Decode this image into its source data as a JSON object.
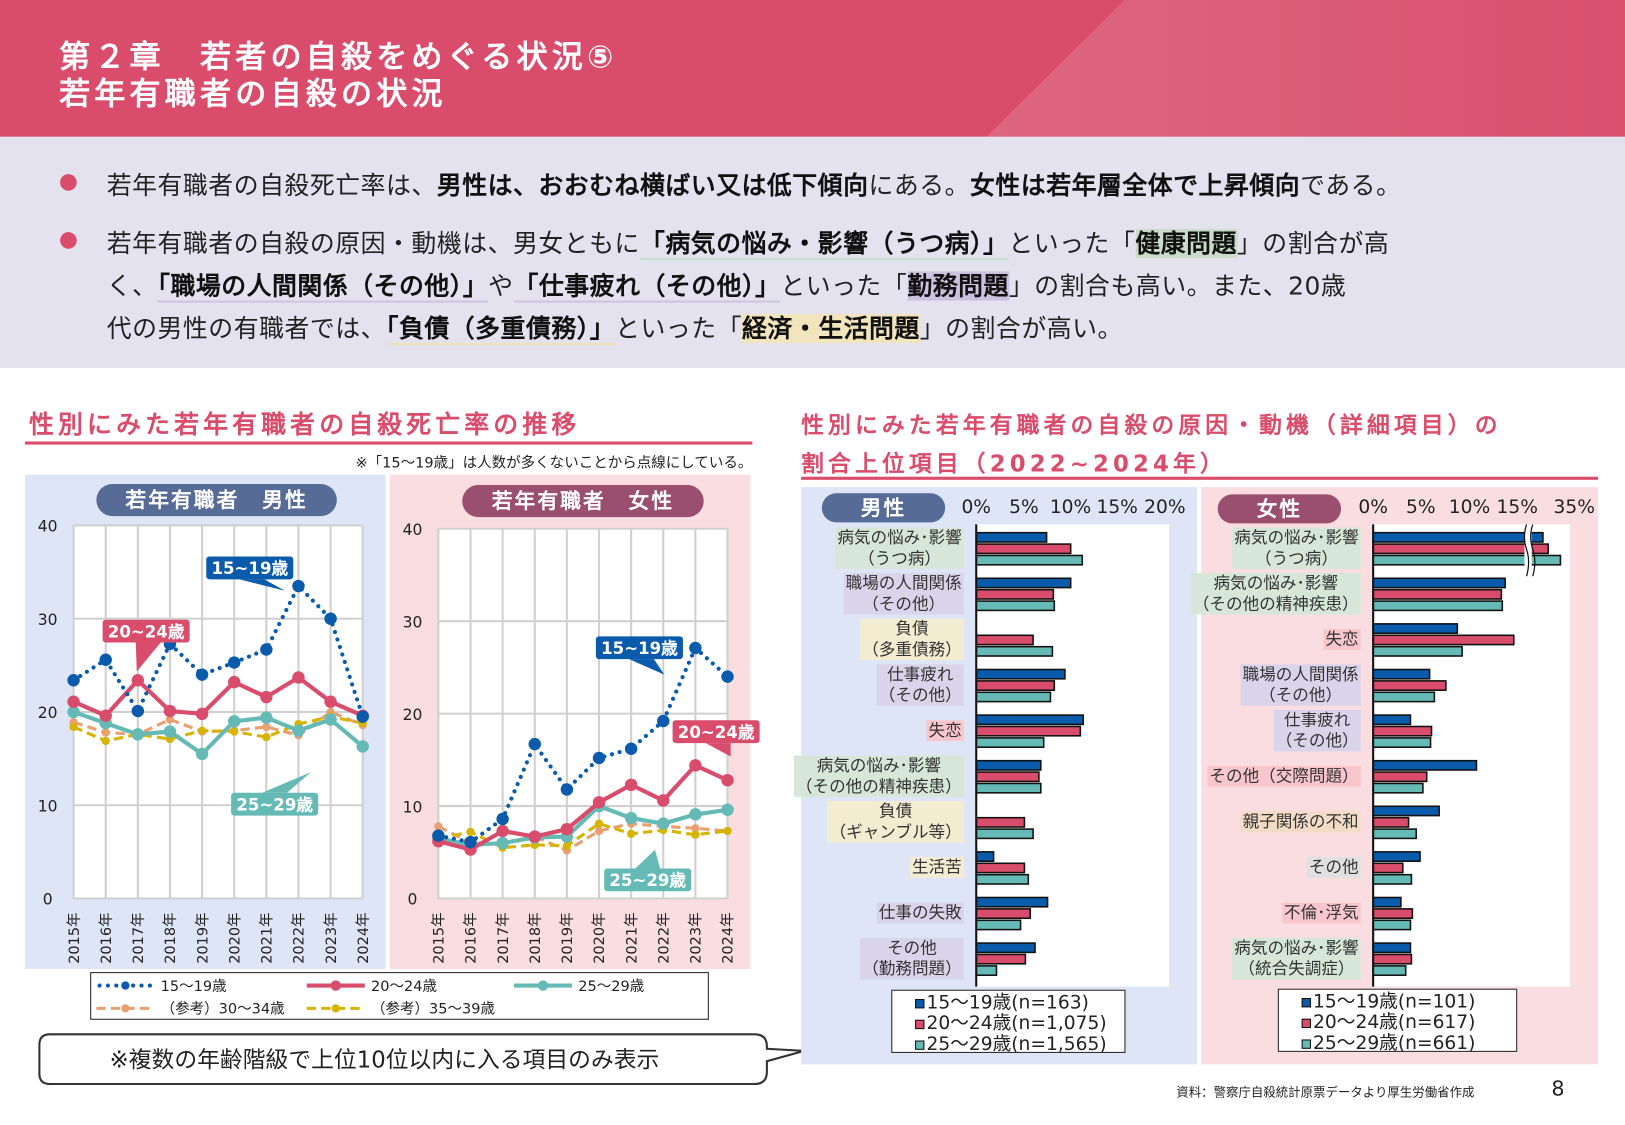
{
  "header": {
    "line1": "第２章　若者の自殺をめぐる状況⑤",
    "line2": "若年有職者の自殺の状況"
  },
  "summary": {
    "lines": [
      [
        {
          "t": "若年有職者の自殺死亡率は、"
        },
        {
          "t": "男性は、おおむね横ばい又は低下傾向",
          "b": 1
        },
        {
          "t": "にある。"
        },
        {
          "t": "女性は若年層全体で上昇傾向",
          "b": 1
        },
        {
          "t": "である。"
        }
      ],
      [
        {
          "t": "若年有職者の自殺の原因・動機は、男女ともに"
        },
        {
          "t": "「病気の悩み・影響（うつ病）」",
          "b": 1,
          "c": "ul-g"
        },
        {
          "t": "といった「"
        },
        {
          "t": "健康問題",
          "b": 1,
          "c": "hl-g"
        },
        {
          "t": "」の割合が高"
        }
      ],
      [
        {
          "t": "く、"
        },
        {
          "t": "「職場の人間関係（その他）」",
          "b": 1,
          "c": "ul-p"
        },
        {
          "t": "や"
        },
        {
          "t": "「仕事疲れ（その他）」",
          "b": 1,
          "c": "ul-p"
        },
        {
          "t": "といった「"
        },
        {
          "t": "勤務問題",
          "b": 1,
          "c": "hl-p"
        },
        {
          "t": "」の割合も高い。また、20歳"
        }
      ],
      [
        {
          "t": "代の男性の有職者では、"
        },
        {
          "t": "「負債（多重債務）」",
          "b": 1,
          "c": "ul-y"
        },
        {
          "t": "といった「"
        },
        {
          "t": "経済・生活問題",
          "b": 1,
          "c": "hl-y"
        },
        {
          "t": "」の割合が高い。"
        }
      ]
    ]
  },
  "left": {
    "title": "性別にみた若年有職者の自殺死亡率の推移",
    "note": "※「15～19歳」は人数が多くないことから点線にしている。",
    "callout": "※複数の年齢階級で上位10位以内に入る項目のみ表示"
  },
  "right": {
    "title1": "性別にみた若年有職者の自殺の原因・動機（詳細項目）の",
    "title2": "割合上位項目（2022~2024年）"
  },
  "colors": {
    "c15": "#0a5bab",
    "c20": "#d94c6c",
    "c25": "#66bab5",
    "c30": "#e8a070",
    "c35": "#d6b400",
    "accent": "#d94c6c"
  },
  "chart_data": [
    {
      "type": "line",
      "title": "若年有職者　男性",
      "ylim": [
        0,
        40
      ],
      "yticks": [
        "0",
        "10",
        "20",
        "30",
        "40"
      ],
      "categories": [
        "2015年",
        "2016年",
        "2017年",
        "2018年",
        "2019年",
        "2020年",
        "2021年",
        "2022年",
        "2023年",
        "2024年"
      ],
      "series": [
        {
          "name": "15～19歳",
          "label": "15~19歳",
          "values": [
            23.4,
            25.6,
            20.1,
            27.3,
            24.0,
            25.3,
            26.7,
            33.5,
            30.0,
            19.5
          ]
        },
        {
          "name": "20～24歳",
          "label": "20~24歳",
          "values": [
            21.1,
            19.6,
            23.4,
            20.1,
            19.8,
            23.2,
            21.6,
            23.7,
            21.1,
            19.6
          ]
        },
        {
          "name": "25～29歳",
          "label": "25~29歳",
          "values": [
            20.0,
            18.8,
            17.6,
            17.9,
            15.5,
            19.0,
            19.4,
            18.0,
            19.2,
            16.3
          ]
        },
        {
          "name": "（参考）30～34歳",
          "values": [
            18.9,
            17.8,
            17.6,
            19.2,
            17.9,
            18.0,
            18.4,
            17.5,
            20.0,
            18.6
          ]
        },
        {
          "name": "（参考）35～39歳",
          "values": [
            18.4,
            16.9,
            17.6,
            17.1,
            18.0,
            17.9,
            17.3,
            18.7,
            19.5,
            18.8
          ]
        }
      ]
    },
    {
      "type": "line",
      "title": "若年有職者　女性",
      "ylim": [
        0,
        40
      ],
      "yticks": [
        "0",
        "10",
        "20",
        "30",
        "40"
      ],
      "categories": [
        "2015年",
        "2016年",
        "2017年",
        "2018年",
        "2019年",
        "2020年",
        "2021年",
        "2022年",
        "2023年",
        "2024年"
      ],
      "series": [
        {
          "name": "15～19歳",
          "label": "15~19歳",
          "values": [
            6.8,
            6.1,
            8.6,
            16.7,
            11.8,
            15.2,
            16.2,
            19.2,
            27.1,
            24.0
          ]
        },
        {
          "name": "20～24歳",
          "label": "20~24歳",
          "values": [
            6.2,
            5.3,
            7.3,
            6.7,
            7.5,
            10.4,
            12.3,
            10.6,
            14.4,
            12.8
          ]
        },
        {
          "name": "25～29歳",
          "label": "25~29歳",
          "values": [
            6.5,
            5.8,
            6.0,
            6.6,
            6.7,
            10.0,
            8.7,
            8.1,
            9.1,
            9.6
          ]
        },
        {
          "name": "（参考）30～34歳",
          "values": [
            7.8,
            6.0,
            6.0,
            6.7,
            5.2,
            7.3,
            8.1,
            7.8,
            7.6,
            7.3
          ]
        },
        {
          "name": "（参考）35～39歳",
          "values": [
            6.5,
            7.2,
            5.5,
            5.8,
            5.7,
            8.1,
            7.0,
            7.4,
            6.9,
            7.3
          ]
        }
      ]
    },
    {
      "type": "bar",
      "title": "男性",
      "orientation": "horizontal",
      "xticks": [
        "0%",
        "5%",
        "10%",
        "15%",
        "20%"
      ],
      "xlim": [
        0,
        20
      ],
      "categories": [
        {
          "label": "病気の悩み･影響\n（うつ病）",
          "group": "health"
        },
        {
          "label": "職場の人間関係\n（その他）",
          "group": "work"
        },
        {
          "label": "負債\n（多重債務）",
          "group": "econ"
        },
        {
          "label": "仕事疲れ\n（その他）",
          "group": "work"
        },
        {
          "label": "失恋",
          "group": "love"
        },
        {
          "label": "病気の悩み･影響\n（その他の精神疾患）",
          "group": "health"
        },
        {
          "label": "負債\n（ギャンブル等）",
          "group": "econ"
        },
        {
          "label": "生活苦",
          "group": "econ"
        },
        {
          "label": "仕事の失敗",
          "group": "work"
        },
        {
          "label": "その他\n（勤務問題）",
          "group": "work"
        }
      ],
      "series": [
        {
          "name": "15～19歳(n=163)",
          "values": [
            7.3,
            9.8,
            0,
            9.2,
            11.1,
            6.7,
            0,
            1.8,
            7.4,
            6.1
          ]
        },
        {
          "name": "20～24歳(n=1,075)",
          "values": [
            9.8,
            8.0,
            5.9,
            8.1,
            10.8,
            6.5,
            5.0,
            5.0,
            5.6,
            5.1
          ]
        },
        {
          "name": "25～29歳(n=1,565)",
          "values": [
            11.0,
            8.1,
            7.9,
            7.7,
            7.0,
            6.7,
            5.9,
            5.4,
            4.6,
            2.1
          ]
        }
      ]
    },
    {
      "type": "bar",
      "title": "女性",
      "orientation": "horizontal",
      "xticks": [
        "0%",
        "5%",
        "10%",
        "15%",
        "35%"
      ],
      "xlim": [
        0,
        35
      ],
      "axis_break": [
        17,
        35
      ],
      "categories": [
        {
          "label": "病気の悩み･影響\n（うつ病）",
          "group": "health"
        },
        {
          "label": "病気の悩み･影響\n（その他の精神疾患）",
          "group": "health"
        },
        {
          "label": "失恋",
          "group": "love"
        },
        {
          "label": "職場の人間関係\n（その他）",
          "group": "work"
        },
        {
          "label": "仕事疲れ\n（その他）",
          "group": "work"
        },
        {
          "label": "その他（交際問題）",
          "group": "love"
        },
        {
          "label": "親子関係の不和",
          "group": "family"
        },
        {
          "label": "その他",
          "group": "other"
        },
        {
          "label": "不倫･浮気",
          "group": "love"
        },
        {
          "label": "病気の悩み･影響\n（統合失調症）",
          "group": "health"
        }
      ],
      "series": [
        {
          "name": "15～19歳(n=101)",
          "values": [
            22.6,
            13.8,
            8.8,
            5.9,
            3.9,
            10.8,
            6.9,
            4.9,
            2.9,
            3.9
          ]
        },
        {
          "name": "20～24歳(n=617)",
          "values": [
            25.0,
            13.4,
            14.7,
            7.6,
            6.1,
            5.6,
            3.7,
            3.1,
            4.1,
            4.0
          ]
        },
        {
          "name": "25～29歳(n=661)",
          "values": [
            30.6,
            13.5,
            9.3,
            6.4,
            6.0,
            5.2,
            4.5,
            4.0,
            3.9,
            3.4
          ]
        }
      ]
    }
  ],
  "footer": {
    "source": "資料：警察庁自殺統計原票データより厚生労働省作成",
    "page": "8"
  }
}
